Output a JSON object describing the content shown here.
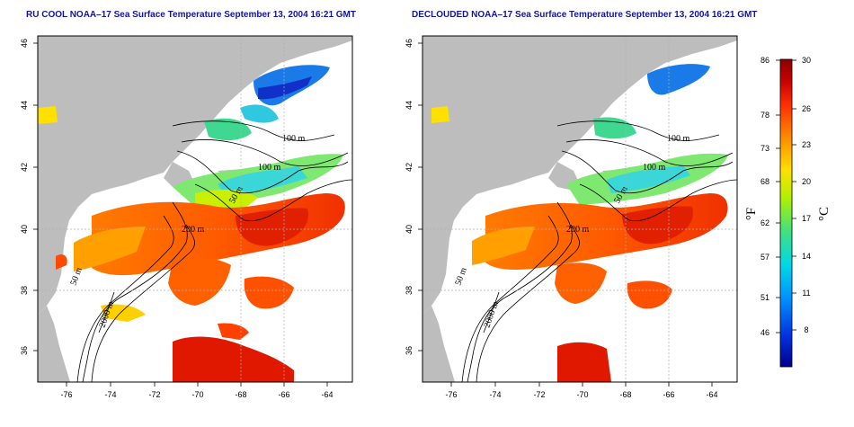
{
  "panels": [
    {
      "id": "left",
      "title": "RU COOL NOAA–17 Sea Surface Temperature September 13, 2004 16:21 GMT",
      "decloud": false
    },
    {
      "id": "right",
      "title": "DECLOUDED NOAA–17 Sea Surface Temperature September 13, 2004 16:21 GMT",
      "decloud": true
    }
  ],
  "x_ticks": [
    "-76",
    "-74",
    "-72",
    "-70",
    "-68",
    "-66",
    "-64"
  ],
  "y_ticks": [
    "36",
    "38",
    "40",
    "42",
    "44",
    "46"
  ],
  "contour_labels": [
    "100 m",
    "100 m",
    "50 m",
    "200 m",
    "50 m",
    "2000 m"
  ],
  "colorbar": {
    "fahrenheit_ticks": [
      "86",
      "78",
      "73",
      "68",
      "62",
      "57",
      "51",
      "46"
    ],
    "celsius_ticks": [
      "30",
      "26",
      "23",
      "20",
      "17",
      "14",
      "11",
      "8"
    ],
    "fahrenheit_unit": "°F",
    "celsius_unit": "°C",
    "colors": [
      "#00008c",
      "#0030e0",
      "#0090ff",
      "#00d8e8",
      "#40e080",
      "#b0f000",
      "#ffe000",
      "#ff9000",
      "#ff3000",
      "#c80000",
      "#8c0000"
    ]
  },
  "colors": {
    "land": "#bdbdbd",
    "frame": "#000000",
    "title": "#1414a0",
    "grid": "#b0b0b0"
  }
}
